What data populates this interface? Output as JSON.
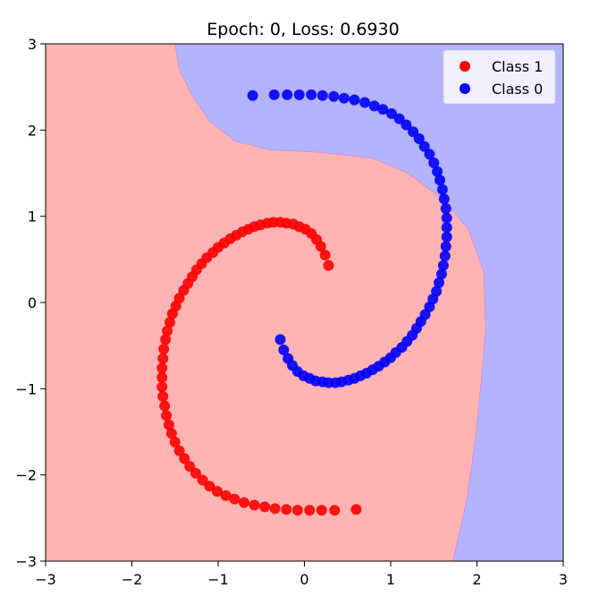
{
  "chart_data": {
    "type": "scatter",
    "title": "Epoch: 0, Loss: 0.6930",
    "xlabel": "",
    "ylabel": "",
    "xlim": [
      -3,
      3
    ],
    "ylim": [
      -3,
      3
    ],
    "x_ticks": [
      -3,
      -2,
      -1,
      0,
      1,
      2,
      3
    ],
    "y_ticks": [
      -3,
      -2,
      -1,
      0,
      1,
      2,
      3
    ],
    "x_tick_labels": [
      "−3",
      "−2",
      "−1",
      "0",
      "1",
      "2",
      "3"
    ],
    "y_tick_labels": [
      "−3",
      "−2",
      "−1",
      "0",
      "1",
      "2",
      "3"
    ],
    "grid": false,
    "legend_position": "top-right",
    "background": {
      "type": "decision_boundary",
      "regions": [
        {
          "class": "Class 1",
          "color": "#ffb3b3"
        },
        {
          "class": "Class 0",
          "color": "#b3b3ff"
        }
      ],
      "boundary": [
        [
          -1.5,
          3.0
        ],
        [
          -1.45,
          2.7
        ],
        [
          -1.3,
          2.4
        ],
        [
          -1.1,
          2.1
        ],
        [
          -0.8,
          1.87
        ],
        [
          -0.4,
          1.77
        ],
        [
          0.2,
          1.74
        ],
        [
          0.8,
          1.67
        ],
        [
          1.2,
          1.5
        ],
        [
          1.6,
          1.2
        ],
        [
          1.9,
          0.85
        ],
        [
          2.08,
          0.35
        ],
        [
          2.1,
          -0.3
        ],
        [
          2.05,
          -0.9
        ],
        [
          1.98,
          -1.6
        ],
        [
          1.88,
          -2.3
        ],
        [
          1.72,
          -3.0
        ]
      ]
    },
    "series": [
      {
        "name": "Class 1",
        "color": "#ff0000",
        "x": [
          0.28,
          0.24,
          0.19,
          0.14,
          0.08,
          0.01,
          -0.06,
          -0.13,
          -0.21,
          -0.28,
          -0.36,
          -0.43,
          -0.51,
          -0.58,
          -0.65,
          -0.72,
          -0.79,
          -0.86,
          -0.93,
          -1.0,
          -1.06,
          -1.13,
          -1.19,
          -1.25,
          -1.3,
          -1.35,
          -1.4,
          -1.45,
          -1.49,
          -1.53,
          -1.56,
          -1.59,
          -1.61,
          -1.63,
          -1.64,
          -1.65,
          -1.65,
          -1.65,
          -1.64,
          -1.62,
          -1.6,
          -1.57,
          -1.54,
          -1.5,
          -1.45,
          -1.39,
          -1.33,
          -1.26,
          -1.18,
          -1.1,
          -1.01,
          -0.91,
          -0.81,
          -0.7,
          -0.58,
          -0.46,
          -0.34,
          -0.21,
          -0.08,
          0.06,
          0.2,
          0.35,
          0.6
        ],
        "y": [
          0.43,
          0.55,
          0.65,
          0.73,
          0.8,
          0.85,
          0.88,
          0.91,
          0.92,
          0.93,
          0.93,
          0.92,
          0.9,
          0.88,
          0.85,
          0.82,
          0.78,
          0.74,
          0.69,
          0.64,
          0.58,
          0.52,
          0.45,
          0.38,
          0.3,
          0.22,
          0.14,
          0.05,
          -0.04,
          -0.13,
          -0.23,
          -0.33,
          -0.43,
          -0.54,
          -0.65,
          -0.76,
          -0.87,
          -0.98,
          -1.09,
          -1.2,
          -1.31,
          -1.42,
          -1.52,
          -1.62,
          -1.72,
          -1.81,
          -1.9,
          -1.98,
          -2.06,
          -2.13,
          -2.19,
          -2.24,
          -2.28,
          -2.32,
          -2.35,
          -2.37,
          -2.39,
          -2.4,
          -2.41,
          -2.41,
          -2.41,
          -2.41,
          -2.4
        ]
      },
      {
        "name": "Class 0",
        "color": "#0000ff",
        "x": [
          -0.28,
          -0.24,
          -0.19,
          -0.14,
          -0.08,
          -0.01,
          0.06,
          0.13,
          0.21,
          0.28,
          0.36,
          0.43,
          0.51,
          0.58,
          0.65,
          0.72,
          0.79,
          0.86,
          0.93,
          1.0,
          1.06,
          1.13,
          1.19,
          1.25,
          1.3,
          1.35,
          1.4,
          1.45,
          1.49,
          1.53,
          1.56,
          1.59,
          1.61,
          1.63,
          1.64,
          1.65,
          1.65,
          1.65,
          1.64,
          1.62,
          1.6,
          1.57,
          1.54,
          1.5,
          1.45,
          1.39,
          1.33,
          1.26,
          1.18,
          1.1,
          1.01,
          0.91,
          0.81,
          0.7,
          0.58,
          0.46,
          0.34,
          0.21,
          0.08,
          -0.06,
          -0.2,
          -0.35,
          -0.6
        ],
        "y": [
          -0.43,
          -0.55,
          -0.65,
          -0.73,
          -0.8,
          -0.85,
          -0.88,
          -0.91,
          -0.92,
          -0.93,
          -0.93,
          -0.92,
          -0.9,
          -0.88,
          -0.85,
          -0.82,
          -0.78,
          -0.74,
          -0.69,
          -0.64,
          -0.58,
          -0.52,
          -0.45,
          -0.38,
          -0.3,
          -0.22,
          -0.14,
          -0.05,
          0.04,
          0.13,
          0.23,
          0.33,
          0.43,
          0.54,
          0.65,
          0.76,
          0.87,
          0.98,
          1.09,
          1.2,
          1.31,
          1.42,
          1.52,
          1.62,
          1.72,
          1.81,
          1.9,
          1.98,
          2.06,
          2.13,
          2.19,
          2.24,
          2.28,
          2.32,
          2.35,
          2.37,
          2.39,
          2.4,
          2.41,
          2.41,
          2.41,
          2.41,
          2.4
        ]
      }
    ],
    "legend": [
      {
        "label": "Class 1",
        "color": "#ff0000"
      },
      {
        "label": "Class 0",
        "color": "#0000ff"
      }
    ]
  }
}
